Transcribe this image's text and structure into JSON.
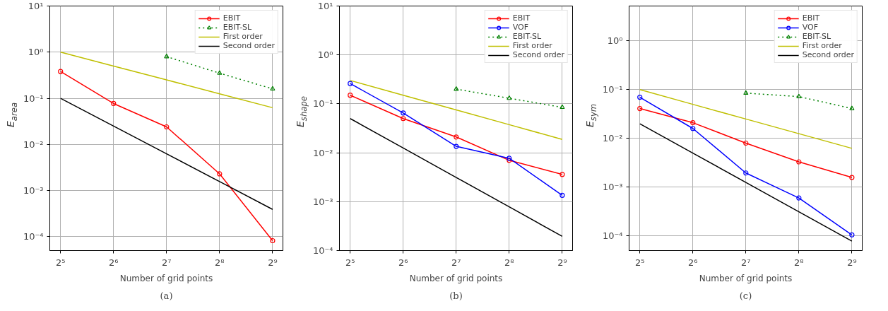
{
  "chart_data": [
    {
      "type": "line",
      "xlabel": "Number of grid points",
      "ylabel": "E$_{area}$",
      "log": "xy",
      "grid": true,
      "legend": "top right",
      "xlim": [
        27.8,
        586
      ],
      "xticks": [
        {
          "value": 32,
          "label": "2⁵"
        },
        {
          "value": 64,
          "label": "2⁶"
        },
        {
          "value": 128,
          "label": "2⁷"
        },
        {
          "value": 256,
          "label": "2⁸"
        },
        {
          "value": 512,
          "label": "2⁹"
        }
      ],
      "ylim": [
        5e-05,
        10
      ],
      "yticks": [
        {
          "value": 0.0001,
          "label": "10⁻⁴"
        },
        {
          "value": 0.001,
          "label": "10⁻³"
        },
        {
          "value": 0.01,
          "label": "10⁻²"
        },
        {
          "value": 0.1,
          "label": "10⁻¹"
        },
        {
          "value": 1,
          "label": "10⁰"
        },
        {
          "value": 10,
          "label": "10¹"
        }
      ],
      "x": [
        32,
        64,
        128,
        256,
        512
      ],
      "series": [
        {
          "name": "EBIT",
          "color": "#ff0000",
          "marker": "circle",
          "line_style": "solid",
          "values": [
            0.38,
            0.077,
            0.024,
            0.0023,
            8.2e-05
          ]
        },
        {
          "name": "EBIT-SL",
          "color": "#008000",
          "marker": "triangle",
          "line_style": "dotted",
          "values": [
            null,
            null,
            0.8,
            0.35,
            0.16
          ]
        },
        {
          "name": "First order",
          "color": "#bfbf00",
          "marker": "none",
          "line_style": "solid",
          "values": [
            1,
            0.5,
            0.25,
            0.125,
            0.0625
          ]
        },
        {
          "name": "Second order",
          "color": "#000000",
          "marker": "none",
          "line_style": "solid",
          "values": [
            0.1,
            0.025,
            0.00625,
            0.0015625,
            0.000390625
          ]
        }
      ],
      "annotations": [
        "(a)"
      ]
    },
    {
      "type": "line",
      "xlabel": "Number of grid points",
      "ylabel": "E$_{shape}$",
      "log": "xy",
      "grid": true,
      "legend": "top right",
      "xlim": [
        27.8,
        586
      ],
      "xticks": [
        {
          "value": 32,
          "label": "2⁵"
        },
        {
          "value": 64,
          "label": "2⁶"
        },
        {
          "value": 128,
          "label": "2⁷"
        },
        {
          "value": 256,
          "label": "2⁸"
        },
        {
          "value": 512,
          "label": "2⁹"
        }
      ],
      "ylim": [
        0.0001,
        10
      ],
      "yticks": [
        {
          "value": 0.0001,
          "label": "10⁻⁴"
        },
        {
          "value": 0.001,
          "label": "10⁻³"
        },
        {
          "value": 0.01,
          "label": "10⁻²"
        },
        {
          "value": 0.1,
          "label": "10⁻¹"
        },
        {
          "value": 1,
          "label": "10⁰"
        },
        {
          "value": 10,
          "label": "10¹"
        }
      ],
      "x": [
        32,
        64,
        128,
        256,
        512
      ],
      "series": [
        {
          "name": "EBIT",
          "color": "#ff0000",
          "marker": "circle",
          "line_style": "solid",
          "values": [
            0.15,
            0.05,
            0.021,
            0.007,
            0.0036
          ]
        },
        {
          "name": "VOF",
          "color": "#0000ff",
          "marker": "circle",
          "line_style": "solid",
          "values": [
            0.26,
            0.065,
            0.0135,
            0.0077,
            0.00135
          ]
        },
        {
          "name": "EBIT-SL",
          "color": "#008000",
          "marker": "triangle",
          "line_style": "dotted",
          "values": [
            null,
            null,
            0.2,
            0.13,
            0.085
          ]
        },
        {
          "name": "First order",
          "color": "#bfbf00",
          "marker": "none",
          "line_style": "solid",
          "values": [
            0.3,
            0.15,
            0.075,
            0.0375,
            0.01875
          ]
        },
        {
          "name": "Second order",
          "color": "#000000",
          "marker": "none",
          "line_style": "solid",
          "values": [
            0.05,
            0.0125,
            0.003125,
            0.00078125,
            0.0001953125
          ]
        }
      ],
      "annotations": [
        "(b)"
      ]
    },
    {
      "type": "line",
      "xlabel": "Number of grid points",
      "ylabel": "E$_{sym}$",
      "log": "xy",
      "grid": true,
      "legend": "top right",
      "xlim": [
        27.8,
        586
      ],
      "xticks": [
        {
          "value": 32,
          "label": "2⁵"
        },
        {
          "value": 64,
          "label": "2⁶"
        },
        {
          "value": 128,
          "label": "2⁷"
        },
        {
          "value": 256,
          "label": "2⁸"
        },
        {
          "value": 512,
          "label": "2⁹"
        }
      ],
      "ylim": [
        5e-05,
        5.2
      ],
      "yticks": [
        {
          "value": 0.0001,
          "label": "10⁻⁴"
        },
        {
          "value": 0.001,
          "label": "10⁻³"
        },
        {
          "value": 0.01,
          "label": "10⁻²"
        },
        {
          "value": 0.1,
          "label": "10⁻¹"
        },
        {
          "value": 1,
          "label": "10⁰"
        }
      ],
      "x": [
        32,
        64,
        128,
        256,
        512
      ],
      "series": [
        {
          "name": "EBIT",
          "color": "#ff0000",
          "marker": "circle",
          "line_style": "solid",
          "values": [
            0.041,
            0.021,
            0.008,
            0.0033,
            0.00158
          ]
        },
        {
          "name": "VOF",
          "color": "#0000ff",
          "marker": "circle",
          "line_style": "solid",
          "values": [
            0.07,
            0.016,
            0.00195,
            0.0006,
            0.000105
          ]
        },
        {
          "name": "EBIT-SL",
          "color": "#008000",
          "marker": "triangle",
          "line_style": "dotted",
          "values": [
            null,
            null,
            0.085,
            0.072,
            0.041
          ]
        },
        {
          "name": "First order",
          "color": "#bfbf00",
          "marker": "none",
          "line_style": "solid",
          "values": [
            0.1,
            0.05,
            0.025,
            0.0125,
            0.00625
          ]
        },
        {
          "name": "Second order",
          "color": "#000000",
          "marker": "none",
          "line_style": "solid",
          "values": [
            0.02,
            0.005,
            0.00125,
            0.0003125,
            7.8125e-05
          ]
        }
      ],
      "annotations": [
        "(c)"
      ]
    }
  ]
}
